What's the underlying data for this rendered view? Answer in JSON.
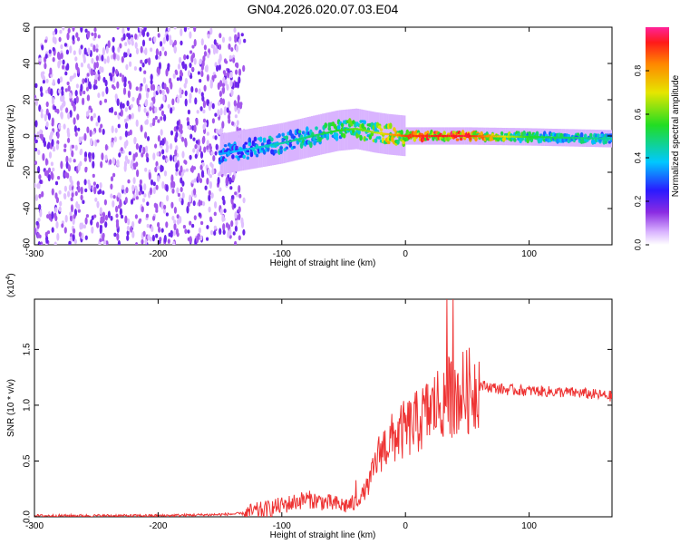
{
  "title": "GN04.2026.020.07.03.E04",
  "chart_data": [
    {
      "type": "heatmap",
      "xlabel": "Height of straight line (km)",
      "ylabel": "Frequency (Hz)",
      "xlim": [
        -300,
        167
      ],
      "ylim": [
        -60,
        60
      ],
      "x_ticks": [
        -300,
        -200,
        -100,
        0,
        100
      ],
      "y_ticks": [
        -60,
        -40,
        -20,
        0,
        20,
        40,
        60
      ],
      "colorbar": {
        "label": "Normalized spectral amplitude",
        "range": [
          0.0,
          1.0
        ],
        "ticks": [
          "0.0",
          "0.2",
          "0.4",
          "0.6",
          "0.8"
        ],
        "tick_values": [
          0.0,
          0.2,
          0.4,
          0.6,
          0.8
        ]
      },
      "ridge": {
        "x": [
          -150,
          -125,
          -100,
          -75,
          -55,
          -40,
          -25,
          -15,
          0,
          50,
          100,
          167
        ],
        "frequency": [
          -10,
          -7,
          -4,
          0,
          3,
          4,
          2,
          1,
          0,
          0,
          -0.5,
          -1.5
        ],
        "amplitude": [
          0.35,
          0.4,
          0.45,
          0.5,
          0.55,
          0.6,
          0.65,
          0.75,
          0.9,
          0.95,
          0.55,
          0.45
        ]
      },
      "noise_region": {
        "x": [
          -300,
          -130
        ],
        "frequency": [
          -60,
          60
        ],
        "amplitude": 0.1
      }
    },
    {
      "type": "line",
      "xlabel": "Height of straight line (km)",
      "ylabel": "SNR (10 * v/v)",
      "multiplier": "(x10",
      "multiplier_exp": "4",
      "multiplier_close": ")",
      "xlim": [
        -300,
        167
      ],
      "ylim": [
        0,
        1.95
      ],
      "x_ticks": [
        -300,
        -200,
        -100,
        0,
        100
      ],
      "y_ticks": [
        "0.0",
        "0.5",
        "1.0",
        "1.5"
      ],
      "y_tick_values": [
        0.0,
        0.5,
        1.0,
        1.5
      ],
      "color": "#ee3333",
      "series": [
        {
          "x": [
            -300,
            -250,
            -200,
            -150,
            -130,
            -115,
            -100,
            -90,
            -80,
            -70,
            -60,
            -50,
            -40,
            -30,
            -25,
            -20,
            -15,
            -10,
            -5,
            0,
            10,
            20,
            30,
            40,
            50,
            60,
            70,
            80,
            100,
            120,
            140,
            167
          ],
          "y": [
            0.01,
            0.01,
            0.01,
            0.02,
            0.03,
            0.06,
            0.1,
            0.13,
            0.16,
            0.14,
            0.12,
            0.1,
            0.12,
            0.28,
            0.45,
            0.6,
            0.65,
            0.7,
            0.75,
            0.78,
            0.85,
            0.95,
            1.05,
            1.1,
            1.12,
            1.18,
            1.16,
            1.14,
            1.13,
            1.12,
            1.11,
            1.08
          ]
        }
      ]
    }
  ]
}
